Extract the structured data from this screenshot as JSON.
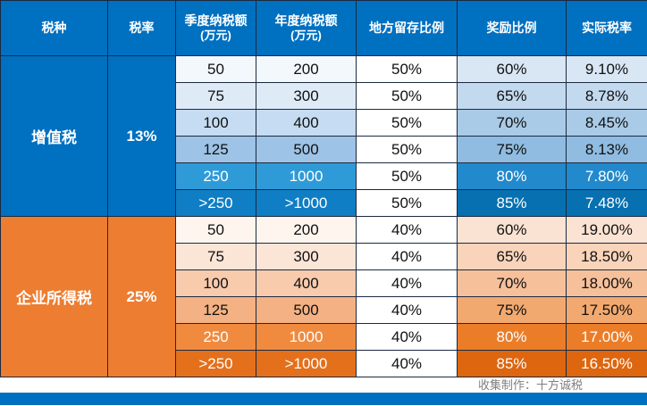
{
  "chart_data": {
    "type": "table",
    "columns": [
      {
        "label": "税种",
        "sub": ""
      },
      {
        "label": "税率",
        "sub": ""
      },
      {
        "label": "季度纳税额",
        "sub": "(万元)"
      },
      {
        "label": "年度纳税额",
        "sub": "(万元)"
      },
      {
        "label": "地方留存比例",
        "sub": ""
      },
      {
        "label": "奖励比例",
        "sub": ""
      },
      {
        "label": "实际税率",
        "sub": ""
      }
    ],
    "groups": [
      {
        "tax_type": "增值税",
        "tax_rate": "13%",
        "theme": "blue",
        "rows": [
          [
            "50",
            "200",
            "50%",
            "60%",
            "9.10%"
          ],
          [
            "75",
            "300",
            "50%",
            "65%",
            "8.78%"
          ],
          [
            "100",
            "400",
            "50%",
            "70%",
            "8.45%"
          ],
          [
            "125",
            "500",
            "50%",
            "75%",
            "8.13%"
          ],
          [
            "250",
            "1000",
            "50%",
            "80%",
            "7.80%"
          ],
          [
            ">250",
            ">1000",
            "50%",
            "85%",
            "7.48%"
          ]
        ]
      },
      {
        "tax_type": "企业所得税",
        "tax_rate": "25%",
        "theme": "orange",
        "rows": [
          [
            "50",
            "200",
            "40%",
            "60%",
            "19.00%"
          ],
          [
            "75",
            "300",
            "40%",
            "65%",
            "18.50%"
          ],
          [
            "100",
            "400",
            "40%",
            "70%",
            "18.00%"
          ],
          [
            "125",
            "500",
            "40%",
            "75%",
            "17.50%"
          ],
          [
            "250",
            "1000",
            "40%",
            "80%",
            "17.00%"
          ],
          [
            ">250",
            ">1000",
            "40%",
            "85%",
            "16.50%"
          ]
        ]
      }
    ]
  },
  "footer": {
    "credit": "收集制作：十方诚税"
  },
  "colors": {
    "header_bg": "#0070C0",
    "header_text": "#FFFFFF",
    "border": "#1B2A41",
    "blue_label": "#0070C0",
    "orange_label": "#ED7D31",
    "blue_value_shades": [
      "#F3F8FD",
      "#DEEBF7",
      "#C5DCF2",
      "#9DC3E6",
      "#2E9AD8",
      "#0F7EC4"
    ],
    "blue_rate_shades": [
      "#D9E7F5",
      "#C3D9EE",
      "#A9CBE7",
      "#8FBCE0",
      "#2189CC",
      "#0670B0"
    ],
    "orange_value_shades": [
      "#FDF5EE",
      "#FBE5D6",
      "#F8CBAD",
      "#F4B183",
      "#F08A3E",
      "#E4701C"
    ],
    "orange_rate_shades": [
      "#FBE3D3",
      "#F9D4BA",
      "#F6C09A",
      "#F2A96F",
      "#EB7D28",
      "#DD660E"
    ],
    "local_retention_bg": "#FFFFFF",
    "bottom_bar": "#0070C0",
    "credit_text": "#7F7F7F"
  }
}
